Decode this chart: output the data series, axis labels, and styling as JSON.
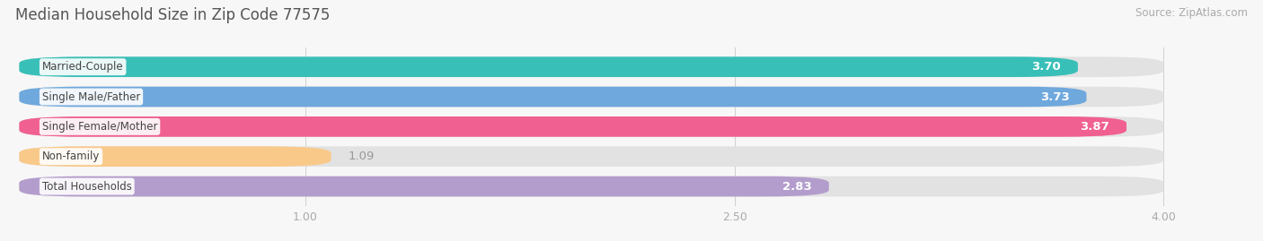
{
  "title": "Median Household Size in Zip Code 77575",
  "source": "Source: ZipAtlas.com",
  "categories": [
    "Married-Couple",
    "Single Male/Father",
    "Single Female/Mother",
    "Non-family",
    "Total Households"
  ],
  "values": [
    3.7,
    3.73,
    3.87,
    1.09,
    2.83
  ],
  "bar_colors": [
    "#38bfb8",
    "#6fa8dc",
    "#f06090",
    "#f9c98a",
    "#b39dcc"
  ],
  "background_color": "#f7f7f7",
  "bar_bg_color": "#e2e2e2",
  "xlim_min": 0.0,
  "xlim_max": 4.3,
  "data_max": 4.0,
  "xticks": [
    1.0,
    2.5,
    4.0
  ],
  "value_labels": [
    "3.70",
    "3.73",
    "3.87",
    "1.09",
    "2.83"
  ],
  "inside_label_threshold": 1.5,
  "title_fontsize": 12,
  "source_fontsize": 8.5,
  "bar_label_fontsize": 9.5,
  "category_fontsize": 8.5,
  "tick_fontsize": 9,
  "bar_height": 0.68,
  "bar_gap": 0.32
}
